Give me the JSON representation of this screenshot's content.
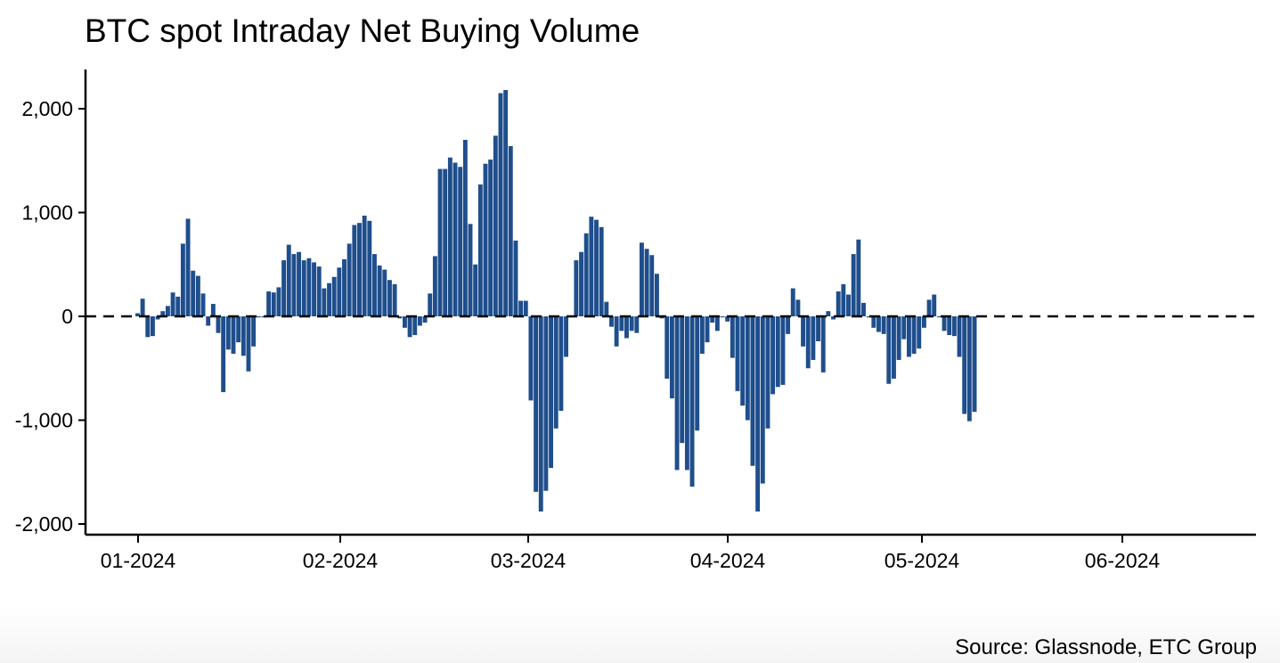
{
  "header": {
    "title": "BTC spot Intraday Net Buying Volume"
  },
  "footer": {
    "source": "Source: Glassnode, ETC Group"
  },
  "chart_data": {
    "type": "bar",
    "title": "BTC spot Intraday Net Buying Volume",
    "xlabel": "",
    "ylabel": "",
    "ylim": [
      -2050,
      2100
    ],
    "yticks": [
      2000,
      1000,
      0,
      -1000,
      -2000
    ],
    "ytick_labels": [
      "2,000",
      "1,000",
      "0",
      "-1,000",
      "-2,000"
    ],
    "xticks": [
      "01-2024",
      "02-2024",
      "03-2024",
      "04-2024",
      "05-2024",
      "06-2024"
    ],
    "zero_line": "dashed",
    "grid": false,
    "bar_color": "#1f4e8c",
    "series": [
      {
        "values": [
          30,
          170,
          -200,
          -190,
          -30,
          50,
          100,
          230,
          190,
          700,
          940,
          440,
          390,
          220,
          -90,
          120,
          -160,
          -730,
          -320,
          -360,
          -250,
          -380,
          -530,
          -290,
          -10,
          -10,
          240,
          230,
          280,
          540,
          690,
          600,
          620,
          540,
          560,
          520,
          480,
          270,
          320,
          380,
          470,
          550,
          700,
          880,
          900,
          970,
          920,
          600,
          490,
          450,
          350,
          310,
          -20,
          -110,
          -200,
          -180,
          -90,
          -60,
          220,
          580,
          1420,
          1420,
          1530,
          1480,
          1440,
          1700,
          890,
          500,
          1270,
          1470,
          1510,
          1740,
          2150,
          2180,
          1640,
          730,
          150,
          150,
          -810,
          -1690,
          -1880,
          -1680,
          -1460,
          -1080,
          -910,
          -390,
          -10,
          540,
          620,
          800,
          960,
          930,
          860,
          140,
          -100,
          -290,
          -140,
          -210,
          -140,
          -160,
          710,
          650,
          590,
          410,
          -20,
          -600,
          -790,
          -1480,
          -1220,
          -1480,
          -1640,
          -1100,
          -360,
          -250,
          -60,
          -140,
          -10,
          -50,
          -400,
          -720,
          -860,
          -1000,
          -1440,
          -1880,
          -1610,
          -1080,
          -750,
          -680,
          -660,
          -170,
          270,
          160,
          -290,
          -500,
          -420,
          -240,
          -540,
          50,
          -30,
          240,
          310,
          210,
          600,
          740,
          130,
          -10,
          -110,
          -150,
          -170,
          -650,
          -600,
          -420,
          -220,
          -390,
          -360,
          -310,
          -110,
          160,
          210,
          -10,
          -140,
          -180,
          -190,
          -390,
          -940,
          -1010,
          -920
        ]
      }
    ]
  }
}
